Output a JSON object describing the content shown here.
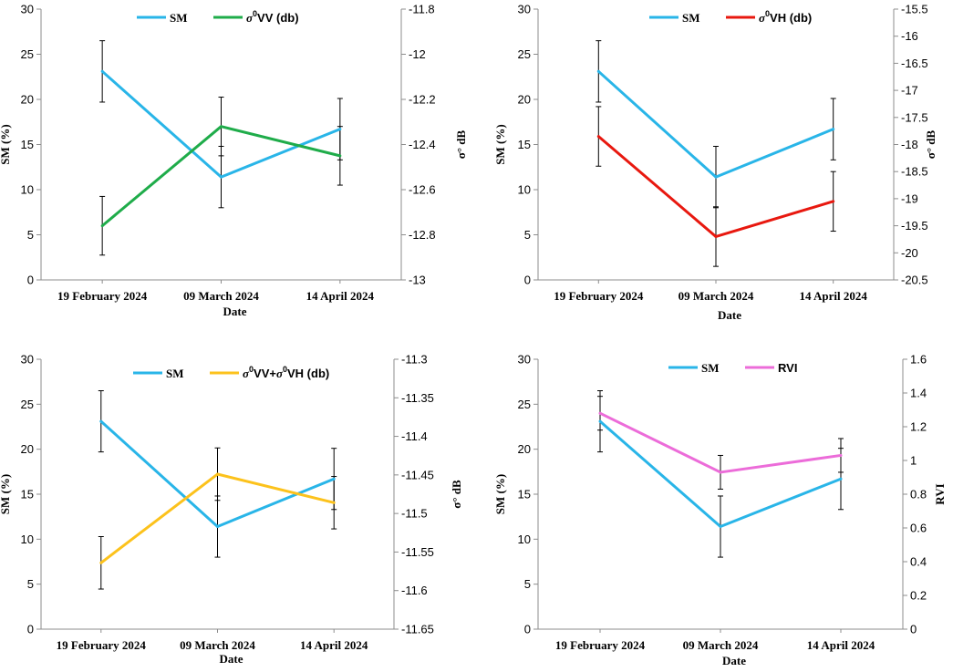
{
  "chart_data": [
    {
      "type": "line",
      "categories": [
        "19 February 2024",
        "09 March 2024",
        "14 April 2024"
      ],
      "xlabel": "Date",
      "ylabel": "SM (%)",
      "y2label": "σ° dB",
      "ylim": [
        0,
        30
      ],
      "yticks": [
        "0",
        "5",
        "10",
        "15",
        "20",
        "25",
        "30"
      ],
      "y2lim": [
        -13,
        -11.8
      ],
      "y2ticks": [
        "-13",
        "-12.8",
        "-12.6",
        "-12.4",
        "-12.2",
        "-12",
        "-11.8"
      ],
      "series": [
        {
          "name": "SM",
          "legend_label": "SM",
          "axis": "left",
          "color": "#29b5e8",
          "values": [
            23.1,
            11.4,
            16.7
          ],
          "errors": [
            3.4,
            3.4,
            3.4
          ]
        },
        {
          "name": "σ0VV (db)",
          "legend_prefix": "σ",
          "legend_sup": "0",
          "legend_suffix": "VV (db)",
          "axis": "right",
          "color": "#1fac4a",
          "values": [
            -12.76,
            -12.32,
            -12.45
          ],
          "errors": [
            0.13,
            0.13,
            0.13
          ]
        }
      ]
    },
    {
      "type": "line",
      "categories": [
        "19 February 2024",
        "09 March 2024",
        "14 April 2024"
      ],
      "xlabel": "Date",
      "ylabel": "SM (%)",
      "y2label": "σ° dB",
      "ylim": [
        0,
        30
      ],
      "yticks": [
        "0",
        "5",
        "10",
        "15",
        "20",
        "25",
        "30"
      ],
      "y2lim": [
        -20.5,
        -15.5
      ],
      "y2ticks": [
        "-20.5",
        "-20",
        "-19.5",
        "-19",
        "-18.5",
        "-18",
        "-17.5",
        "-17",
        "-16.5",
        "-16",
        "-15.5"
      ],
      "series": [
        {
          "name": "SM",
          "legend_label": "SM",
          "axis": "left",
          "color": "#29b5e8",
          "values": [
            23.1,
            11.4,
            16.7
          ],
          "errors": [
            3.4,
            3.4,
            3.4
          ]
        },
        {
          "name": "σ0VH (db)",
          "legend_prefix": "σ",
          "legend_sup": "0",
          "legend_suffix": "VH (db)",
          "axis": "right",
          "color": "#e8180f",
          "values": [
            -17.85,
            -19.7,
            -19.05
          ],
          "errors": [
            0.55,
            0.55,
            0.55
          ]
        }
      ]
    },
    {
      "type": "line",
      "categories": [
        "19 February 2024",
        "09 March 2024",
        "14 April 2024"
      ],
      "xlabel": "Date",
      "ylabel": "SM (%)",
      "y2label": "σ° dB",
      "ylim": [
        0,
        30
      ],
      "yticks": [
        "0",
        "5",
        "10",
        "15",
        "20",
        "25",
        "30"
      ],
      "y2lim": [
        -11.65,
        -11.3
      ],
      "y2ticks": [
        "-11.65",
        "-11.6",
        "-11.55",
        "-11.5",
        "-11.45",
        "-11.4",
        "-11.35",
        "-11.3"
      ],
      "series": [
        {
          "name": "SM",
          "legend_label": "SM",
          "axis": "left",
          "color": "#29b5e8",
          "values": [
            23.1,
            11.4,
            16.7
          ],
          "errors": [
            3.4,
            3.4,
            3.4
          ]
        },
        {
          "name": "σ0VV+σ0VH (db)",
          "legend_prefix": "σ",
          "legend_sup": "0",
          "legend_suffix": "VV+",
          "legend_prefix2": "σ",
          "legend_sup2": "0",
          "legend_suffix2": "VH (db)",
          "axis": "right",
          "color": "#fcc21c",
          "values": [
            -11.564,
            -11.449,
            -11.486
          ],
          "errors": [
            0.034,
            0.034,
            0.034
          ]
        }
      ]
    },
    {
      "type": "line",
      "categories": [
        "19 February 2024",
        "09 March 2024",
        "14 April 2024"
      ],
      "xlabel": "Date",
      "ylabel": "SM (%)",
      "y2label": "RVI",
      "ylim": [
        0,
        30
      ],
      "yticks": [
        "0",
        "5",
        "10",
        "15",
        "20",
        "25",
        "30"
      ],
      "y2lim": [
        0,
        1.6
      ],
      "y2ticks": [
        "0",
        "0.2",
        "0.4",
        "0.6",
        "0.8",
        "1",
        "1.2",
        "1.4",
        "1.6"
      ],
      "series": [
        {
          "name": "SM",
          "legend_label": "SM",
          "axis": "left",
          "color": "#29b5e8",
          "values": [
            23.1,
            11.4,
            16.7
          ],
          "errors": [
            3.4,
            3.4,
            3.4
          ]
        },
        {
          "name": "RVI",
          "legend_label": "RVI",
          "axis": "right",
          "color": "#ec6cd9",
          "values": [
            1.28,
            0.93,
            1.03
          ],
          "errors": [
            0.1,
            0.1,
            0.1
          ]
        }
      ]
    }
  ]
}
